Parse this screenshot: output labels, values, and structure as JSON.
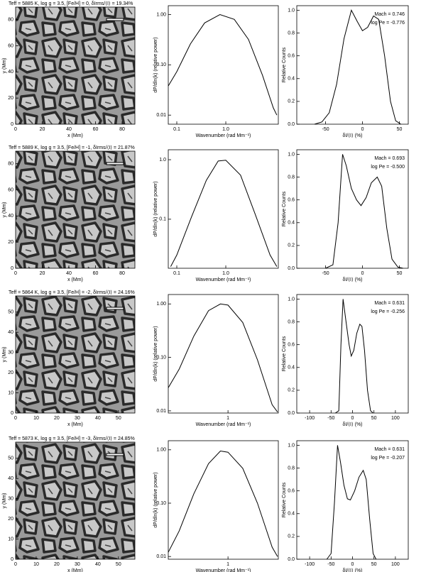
{
  "chart_data": [
    {
      "type": "image",
      "title": "Teff = 5885 K, log g = 3.5, [Fe/H] = 0, δIrms/⟨I⟩ = 19.34%",
      "xlabel": "x (Mm)",
      "ylabel": "y (Mm)",
      "xlim": [
        0,
        89.6
      ],
      "ylim": [
        0,
        89.6
      ],
      "xticks": [
        0,
        20,
        40,
        60,
        80
      ],
      "yticks": [
        0,
        20,
        40,
        60,
        80
      ]
    },
    {
      "type": "line",
      "xlabel": "Wavenumber (rad Mm⁻¹)",
      "ylabel": "dP/dln(k) (relative power)",
      "xlog": true,
      "ylog": true,
      "xlim": [
        0.067,
        11.8
      ],
      "ylim": [
        0.0066,
        1.5
      ],
      "xticks": [
        0.1,
        {
          "value": 1,
          "label": "1.0"
        }
      ],
      "yticks": [
        0.01,
        {
          "value": 0.1,
          "label": "0.10"
        },
        {
          "value": 1,
          "label": "1.00"
        }
      ],
      "x": [
        0.067,
        0.1,
        0.19,
        0.37,
        0.76,
        1.49,
        2.9,
        5.6,
        9.3,
        11
      ],
      "values": [
        0.038,
        0.073,
        0.26,
        0.68,
        1.0,
        0.8,
        0.32,
        0.062,
        0.014,
        0.01
      ]
    },
    {
      "type": "line",
      "xlabel": "δI/⟨I⟩ (%)",
      "ylabel": "Relative Counts",
      "annotations": [
        "Mach = 0.746",
        "log Pe = -0.776"
      ],
      "xlim": [
        -89,
        62
      ],
      "ylim": [
        0,
        1.04
      ],
      "xticks": [
        -50,
        0,
        50
      ],
      "yticks": [
        {
          "value": 0,
          "label": "0.0"
        },
        0.2,
        0.4,
        0.6,
        0.8,
        {
          "value": 1,
          "label": "1.0"
        }
      ],
      "x": [
        -65,
        -55,
        -45,
        -35,
        -25,
        -15,
        -7,
        0,
        7,
        15,
        22,
        30,
        38,
        45,
        52
      ],
      "values": [
        0,
        0.02,
        0.1,
        0.35,
        0.75,
        1.0,
        0.9,
        0.82,
        0.85,
        0.95,
        0.92,
        0.6,
        0.2,
        0.03,
        0
      ]
    },
    {
      "type": "image",
      "title": "Teff = 5889 K, log g = 3.5, [Fe/H] = -1, δIrms/⟨I⟩ = 21.87%",
      "xlabel": "x (Mm)",
      "ylabel": "y (Mm)",
      "xlim": [
        0,
        89.6
      ],
      "ylim": [
        0,
        89.6
      ],
      "xticks": [
        0,
        20,
        40,
        60,
        80
      ],
      "yticks": [
        0,
        20,
        40,
        60,
        80
      ]
    },
    {
      "type": "line",
      "xlabel": "Wavenumber (rad Mm⁻¹)",
      "ylabel": "dP/dln(k) (relative power)",
      "xlog": true,
      "ylog": true,
      "xlim": [
        0.067,
        11.8
      ],
      "ylim": [
        0.015,
        1.47
      ],
      "xticks": [
        0.1,
        {
          "value": 1,
          "label": "1.0"
        }
      ],
      "yticks": [
        0.1,
        {
          "value": 1,
          "label": "1.0"
        }
      ],
      "x": [
        0.075,
        0.1,
        0.2,
        0.4,
        0.7,
        1.0,
        2.0,
        4.0,
        8.0,
        11
      ],
      "values": [
        0.016,
        0.025,
        0.11,
        0.45,
        0.95,
        0.98,
        0.55,
        0.12,
        0.025,
        0.016
      ]
    },
    {
      "type": "line",
      "xlabel": "δI/⟨I⟩ (%)",
      "ylabel": "Relative Counts",
      "annotations": [
        "Mach = 0.693",
        "log Pe = -0.500"
      ],
      "xlim": [
        -89,
        62
      ],
      "ylim": [
        0,
        1.04
      ],
      "xticks": [
        -50,
        0,
        50
      ],
      "yticks": [
        {
          "value": 0,
          "label": "0.0"
        },
        0.2,
        0.4,
        0.6,
        0.8,
        {
          "value": 1,
          "label": "1.0"
        }
      ],
      "x": [
        -50,
        -40,
        -33,
        -27,
        -22,
        -15,
        -8,
        -2,
        5,
        12,
        20,
        26,
        33,
        40,
        48,
        55
      ],
      "values": [
        0,
        0.03,
        0.4,
        1.0,
        0.9,
        0.7,
        0.6,
        0.55,
        0.62,
        0.75,
        0.8,
        0.72,
        0.35,
        0.08,
        0.01,
        0
      ]
    },
    {
      "type": "image",
      "title": "Teff = 5864 K, log g = 3.5, [Fe/H] = -2, δIrms/⟨I⟩ = 24.16%",
      "xlabel": "x (Mm)",
      "ylabel": "y (Mm)",
      "xlim": [
        0,
        58
      ],
      "ylim": [
        0,
        58
      ],
      "xticks": [
        0,
        10,
        20,
        30,
        40,
        50
      ],
      "yticks": [
        0,
        10,
        20,
        30,
        40,
        50
      ]
    },
    {
      "type": "line",
      "xlabel": "Wavenumber (rad Mm⁻¹)",
      "ylabel": "dP/dln(k) (relative power)",
      "xlog": true,
      "ylog": true,
      "xlim": [
        0.06,
        10.7
      ],
      "ylim": [
        0.0091,
        1.5
      ],
      "xticks": [
        1
      ],
      "yticks": [
        0.01,
        {
          "value": 0.1,
          "label": "0.10"
        },
        {
          "value": 1,
          "label": "1.00"
        }
      ],
      "x": [
        0.06,
        0.1,
        0.2,
        0.4,
        0.7,
        1.0,
        2.0,
        4.0,
        8.0,
        10.3
      ],
      "values": [
        0.027,
        0.06,
        0.25,
        0.75,
        1.0,
        0.95,
        0.45,
        0.09,
        0.013,
        0.0095
      ]
    },
    {
      "type": "line",
      "xlabel": "δI/⟨I⟩ (%)",
      "ylabel": "Relative Counts",
      "annotations": [
        "Mach = 0.631",
        "log Pe = -0.256"
      ],
      "xlim": [
        -130,
        130
      ],
      "ylim": [
        0,
        1.04
      ],
      "xticks": [
        -100,
        -50,
        0,
        50,
        100
      ],
      "yticks": [
        {
          "value": 0,
          "label": "0.0"
        },
        0.2,
        0.4,
        0.6,
        0.8,
        {
          "value": 1,
          "label": "1.0"
        }
      ],
      "x": [
        -40,
        -32,
        -27,
        -22,
        -15,
        -8,
        -3,
        3,
        10,
        17,
        22,
        28,
        35,
        42,
        48
      ],
      "values": [
        0,
        0.02,
        0.6,
        1.0,
        0.8,
        0.6,
        0.5,
        0.55,
        0.7,
        0.78,
        0.76,
        0.55,
        0.2,
        0.02,
        0
      ]
    },
    {
      "type": "image",
      "title": "Teff = 5873 K, log g = 3.5, [Fe/H] = -3, δIrms/⟨I⟩ = 24.85%",
      "xlabel": "x (Mm)",
      "ylabel": "y (Mm)",
      "xlim": [
        0,
        58
      ],
      "ylim": [
        0,
        58
      ],
      "xticks": [
        0,
        10,
        20,
        30,
        40,
        50
      ],
      "yticks": [
        0,
        10,
        20,
        30,
        40,
        50
      ]
    },
    {
      "type": "line",
      "xlabel": "Wavenumber (rad Mm⁻¹)",
      "ylabel": "dP/dln(k) (relative power)",
      "xlog": true,
      "ylog": true,
      "xlim": [
        0.06,
        10.7
      ],
      "ylim": [
        0.0089,
        1.48
      ],
      "xticks": [
        1
      ],
      "yticks": [
        0.01,
        {
          "value": 0.1,
          "label": "0.10"
        },
        {
          "value": 1,
          "label": "1.00"
        }
      ],
      "x": [
        0.06,
        0.1,
        0.2,
        0.4,
        0.7,
        1.0,
        2.0,
        4.0,
        8.0,
        10.3
      ],
      "values": [
        0.012,
        0.03,
        0.15,
        0.55,
        0.95,
        0.9,
        0.45,
        0.1,
        0.015,
        0.01
      ]
    },
    {
      "type": "line",
      "xlabel": "δI/⟨I⟩ (%)",
      "ylabel": "Relative Counts",
      "annotations": [
        "Mach = 0.631",
        "log Pe = -0.207"
      ],
      "xlim": [
        -130,
        130
      ],
      "ylim": [
        0,
        1.04
      ],
      "xticks": [
        -100,
        -50,
        0,
        50,
        100
      ],
      "yticks": [
        {
          "value": 0,
          "label": "0.0"
        },
        0.2,
        0.4,
        0.6,
        0.8,
        {
          "value": 1,
          "label": "1.0"
        }
      ],
      "x": [
        -60,
        -50,
        -42,
        -35,
        -28,
        -20,
        -12,
        -5,
        5,
        15,
        25,
        32,
        40,
        48,
        55
      ],
      "values": [
        0,
        0.05,
        0.5,
        1.0,
        0.85,
        0.65,
        0.53,
        0.52,
        0.6,
        0.72,
        0.78,
        0.7,
        0.35,
        0.05,
        0
      ]
    }
  ]
}
